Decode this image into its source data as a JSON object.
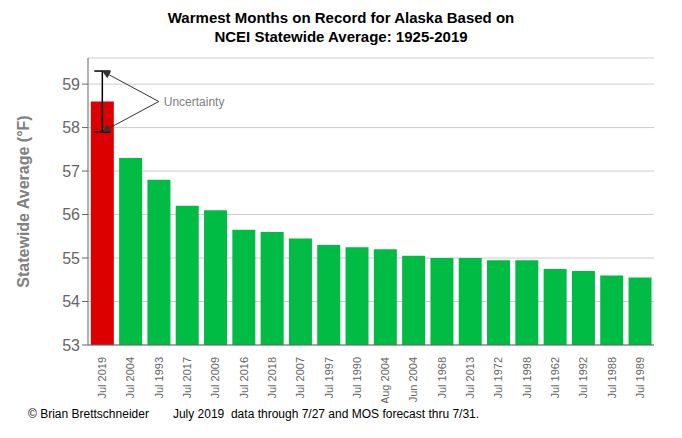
{
  "chart_data": {
    "type": "bar",
    "title": "Warmest Months on Record for Alaska Based on",
    "subtitle": "NCEI Statewide Average: 1925-2019",
    "ylabel": "Statewide Average (°F)",
    "categories": [
      "Jul 2019",
      "Jul 2004",
      "Jul 1993",
      "Jul 2017",
      "Jul 2009",
      "Jul 2016",
      "Jul 2018",
      "Jul 2007",
      "Jul 1997",
      "Jul 1990",
      "Aug 2004",
      "Jun 2004",
      "Jul 1968",
      "Jul 2013",
      "Jul 1972",
      "Jul 1998",
      "Jul 1962",
      "Jul 1992",
      "Jul 1988",
      "Jul 1989"
    ],
    "values": [
      58.6,
      57.3,
      56.8,
      56.2,
      56.1,
      55.65,
      55.6,
      55.45,
      55.3,
      55.25,
      55.2,
      55.05,
      55.0,
      55.0,
      54.95,
      54.95,
      54.75,
      54.7,
      54.6,
      54.55
    ],
    "errors": [
      0.7,
      null,
      null,
      null,
      null,
      null,
      null,
      null,
      null,
      null,
      null,
      null,
      null,
      null,
      null,
      null,
      null,
      null,
      null,
      null
    ],
    "colors": [
      "#dd0000",
      "#00bb44",
      "#00bb44",
      "#00bb44",
      "#00bb44",
      "#00bb44",
      "#00bb44",
      "#00bb44",
      "#00bb44",
      "#00bb44",
      "#00bb44",
      "#00bb44",
      "#00bb44",
      "#00bb44",
      "#00bb44",
      "#00bb44",
      "#00bb44",
      "#00bb44",
      "#00bb44",
      "#00bb44"
    ],
    "ylim": [
      53,
      59.6
    ],
    "yticks": [
      53,
      54,
      55,
      56,
      57,
      58,
      59
    ],
    "grid": true,
    "annotations": [
      "Uncertainty",
      "© Brian Brettschneider",
      "July 2019  data through 7/27 and MOS forecast thru 7/31."
    ]
  }
}
